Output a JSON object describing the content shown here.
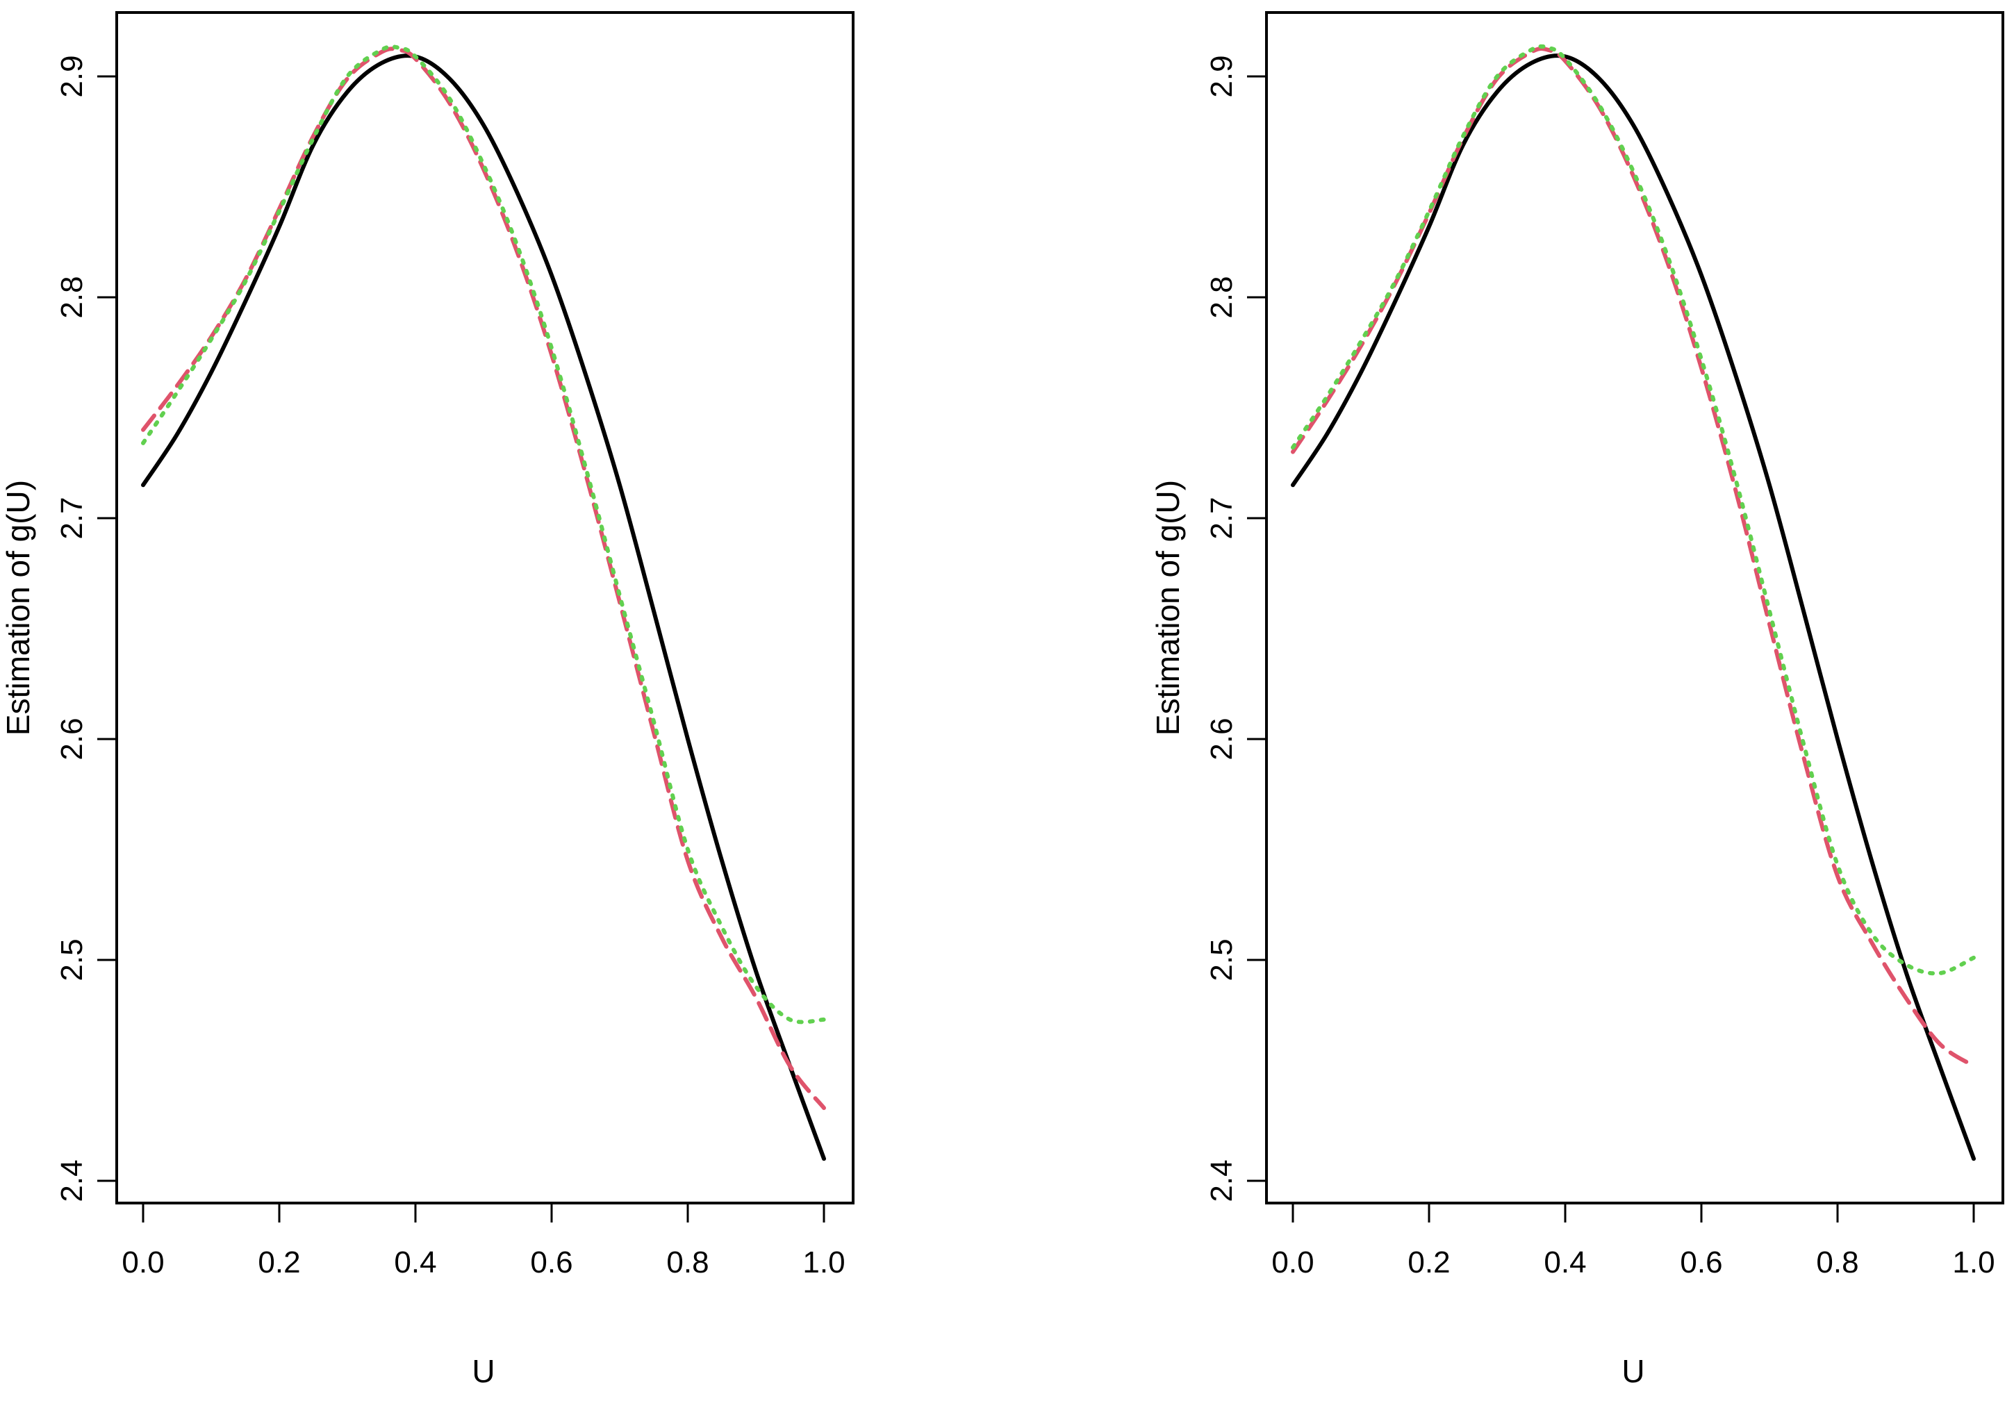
{
  "chart_data": [
    {
      "type": "line",
      "xlabel": "U",
      "ylabel": "Estimation of g(U)",
      "xlim": [
        0,
        1
      ],
      "ylim": [
        2.4,
        2.9
      ],
      "xticks": [
        "0.0",
        "0.2",
        "0.4",
        "0.6",
        "0.8",
        "1.0"
      ],
      "yticks": [
        "2.4",
        "2.5",
        "2.6",
        "2.7",
        "2.8",
        "2.9"
      ],
      "grid": false,
      "legend": "none",
      "series": [
        {
          "style": "solid",
          "color": "#000000",
          "x": [
            0.0,
            0.05,
            0.1,
            0.15,
            0.2,
            0.25,
            0.3,
            0.35,
            0.4,
            0.45,
            0.5,
            0.55,
            0.6,
            0.65,
            0.7,
            0.75,
            0.8,
            0.85,
            0.9,
            0.95,
            1.0
          ],
          "y": [
            2.715,
            2.738,
            2.766,
            2.798,
            2.832,
            2.869,
            2.893,
            2.906,
            2.909,
            2.899,
            2.878,
            2.847,
            2.81,
            2.765,
            2.715,
            2.658,
            2.6,
            2.545,
            2.495,
            2.452,
            2.41
          ]
        },
        {
          "style": "dashed",
          "color": "#df536b",
          "x": [
            0.0,
            0.05,
            0.1,
            0.15,
            0.2,
            0.25,
            0.3,
            0.35,
            0.375,
            0.4,
            0.45,
            0.5,
            0.55,
            0.6,
            0.65,
            0.7,
            0.75,
            0.8,
            0.85,
            0.9,
            0.95,
            1.0
          ],
          "y": [
            2.74,
            2.76,
            2.782,
            2.808,
            2.84,
            2.873,
            2.899,
            2.911,
            2.912,
            2.908,
            2.888,
            2.858,
            2.82,
            2.774,
            2.72,
            2.662,
            2.603,
            2.545,
            2.51,
            2.483,
            2.452,
            2.433
          ]
        },
        {
          "style": "dotted",
          "color": "#61d04f",
          "x": [
            0.0,
            0.05,
            0.1,
            0.15,
            0.2,
            0.25,
            0.3,
            0.35,
            0.375,
            0.4,
            0.45,
            0.5,
            0.55,
            0.6,
            0.65,
            0.7,
            0.75,
            0.8,
            0.85,
            0.9,
            0.95,
            1.0
          ],
          "y": [
            2.734,
            2.757,
            2.781,
            2.807,
            2.839,
            2.872,
            2.9,
            2.912,
            2.913,
            2.909,
            2.89,
            2.86,
            2.823,
            2.777,
            2.723,
            2.665,
            2.608,
            2.55,
            2.515,
            2.488,
            2.473,
            2.473
          ]
        }
      ]
    },
    {
      "type": "line",
      "xlabel": "U",
      "ylabel": "Estimation of g(U)",
      "xlim": [
        0,
        1
      ],
      "ylim": [
        2.4,
        2.9
      ],
      "xticks": [
        "0.0",
        "0.2",
        "0.4",
        "0.6",
        "0.8",
        "1.0"
      ],
      "yticks": [
        "2.4",
        "2.5",
        "2.6",
        "2.7",
        "2.8",
        "2.9"
      ],
      "grid": false,
      "legend": "none",
      "series": [
        {
          "style": "solid",
          "color": "#000000",
          "x": [
            0.0,
            0.05,
            0.1,
            0.15,
            0.2,
            0.25,
            0.3,
            0.35,
            0.4,
            0.45,
            0.5,
            0.55,
            0.6,
            0.65,
            0.7,
            0.75,
            0.8,
            0.85,
            0.9,
            0.95,
            1.0
          ],
          "y": [
            2.715,
            2.738,
            2.766,
            2.798,
            2.832,
            2.869,
            2.893,
            2.906,
            2.909,
            2.899,
            2.878,
            2.847,
            2.81,
            2.765,
            2.715,
            2.658,
            2.6,
            2.545,
            2.495,
            2.452,
            2.41
          ]
        },
        {
          "style": "dashed",
          "color": "#df536b",
          "x": [
            0.0,
            0.05,
            0.1,
            0.15,
            0.2,
            0.25,
            0.3,
            0.35,
            0.375,
            0.4,
            0.45,
            0.5,
            0.55,
            0.6,
            0.65,
            0.7,
            0.75,
            0.8,
            0.85,
            0.9,
            0.95,
            1.0
          ],
          "y": [
            2.73,
            2.753,
            2.778,
            2.806,
            2.838,
            2.872,
            2.899,
            2.911,
            2.912,
            2.907,
            2.886,
            2.855,
            2.816,
            2.768,
            2.713,
            2.652,
            2.592,
            2.538,
            2.508,
            2.483,
            2.462,
            2.452
          ]
        },
        {
          "style": "dotted",
          "color": "#61d04f",
          "x": [
            0.0,
            0.05,
            0.1,
            0.15,
            0.2,
            0.25,
            0.3,
            0.35,
            0.375,
            0.4,
            0.45,
            0.5,
            0.55,
            0.6,
            0.65,
            0.7,
            0.75,
            0.8,
            0.85,
            0.9,
            0.95,
            1.0
          ],
          "y": [
            2.732,
            2.755,
            2.78,
            2.807,
            2.839,
            2.873,
            2.9,
            2.912,
            2.913,
            2.908,
            2.887,
            2.857,
            2.819,
            2.772,
            2.718,
            2.658,
            2.598,
            2.543,
            2.512,
            2.498,
            2.494,
            2.501
          ]
        }
      ]
    }
  ]
}
